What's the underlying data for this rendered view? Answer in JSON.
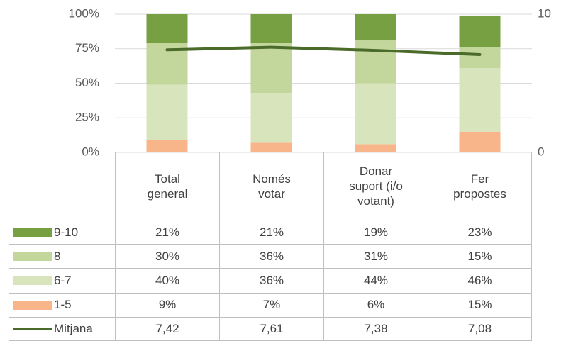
{
  "chart_data": {
    "type": "bar",
    "stacked": true,
    "categories": [
      "Total general",
      "Només votar",
      "Donar suport (i/o votant)",
      "Fer propostes"
    ],
    "series": [
      {
        "name": "9-10",
        "color": "#77a043",
        "values": [
          21,
          21,
          19,
          23
        ],
        "value_labels": [
          "21%",
          "21%",
          "19%",
          "23%"
        ]
      },
      {
        "name": "8",
        "color": "#c3d69b",
        "values": [
          30,
          36,
          31,
          15
        ],
        "value_labels": [
          "30%",
          "36%",
          "31%",
          "15%"
        ]
      },
      {
        "name": "6-7",
        "color": "#d8e4bc",
        "values": [
          40,
          36,
          44,
          46
        ],
        "value_labels": [
          "40%",
          "36%",
          "44%",
          "46%"
        ]
      },
      {
        "name": "1-5",
        "color": "#f9b58a",
        "values": [
          9,
          7,
          6,
          15
        ],
        "value_labels": [
          "9%",
          "7%",
          "6%",
          "15%"
        ]
      },
      {
        "name": "Mitjana",
        "color": "#4a6b2a",
        "type": "line",
        "axis": "y2",
        "values": [
          7.42,
          7.61,
          7.38,
          7.08
        ],
        "value_labels": [
          "7,42",
          "7,61",
          "7,38",
          "7,08"
        ]
      }
    ],
    "ylim": [
      0,
      100
    ],
    "yticks": [
      {
        "value": 0,
        "label": "0%"
      },
      {
        "value": 25,
        "label": "25%"
      },
      {
        "value": 50,
        "label": "50%"
      },
      {
        "value": 75,
        "label": "75%"
      },
      {
        "value": 100,
        "label": "100%"
      }
    ],
    "y2lim": [
      0,
      10
    ],
    "y2ticks": [
      0,
      10
    ],
    "grid": true,
    "data_table": true
  }
}
